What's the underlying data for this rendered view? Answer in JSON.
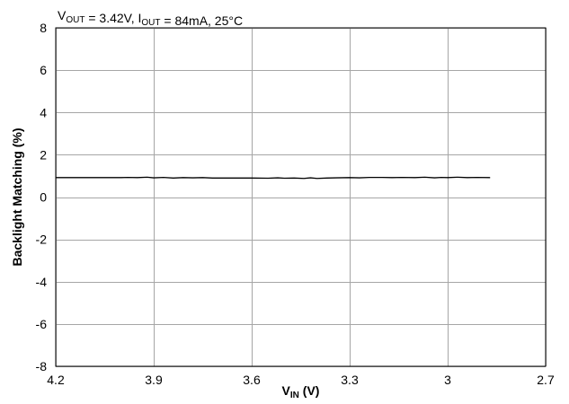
{
  "chart_data": {
    "type": "line",
    "annotation": {
      "parts": [
        {
          "text": "V",
          "sub": "OUT"
        },
        {
          "text": " = 3.42V, I",
          "sub": "OUT"
        },
        {
          "text": " = 84mA, 25°C",
          "sub": ""
        }
      ]
    },
    "xlabel": {
      "text": "V",
      "sub": "IN",
      "suffix": " (V)"
    },
    "ylabel": "Backlight Matching (%)",
    "xlim": [
      4.2,
      2.7
    ],
    "ylim": [
      -8,
      8
    ],
    "x_reversed": true,
    "x_ticks": [
      4.2,
      3.9,
      3.6,
      3.3,
      3.0,
      2.7
    ],
    "x_tick_labels": [
      "4.2",
      "3.9",
      "3.6",
      "3.3",
      "3",
      "2.7"
    ],
    "y_ticks": [
      -8,
      -6,
      -4,
      -2,
      0,
      2,
      4,
      6,
      8
    ],
    "y_tick_labels": [
      "-8",
      "-6",
      "-4",
      "-2",
      "0",
      "2",
      "4",
      "6",
      "8"
    ],
    "grid": true,
    "series": [
      {
        "color": "#000000",
        "x": [
          4.2,
          4.15,
          4.1,
          4.05,
          4.0,
          3.98,
          3.95,
          3.92,
          3.9,
          3.87,
          3.84,
          3.81,
          3.78,
          3.75,
          3.72,
          3.7,
          3.65,
          3.6,
          3.55,
          3.52,
          3.5,
          3.47,
          3.44,
          3.42,
          3.4,
          3.37,
          3.34,
          3.3,
          3.27,
          3.24,
          3.2,
          3.17,
          3.14,
          3.1,
          3.07,
          3.04,
          3.02,
          3.0,
          2.97,
          2.94,
          2.91,
          2.87
        ],
        "y": [
          0.92,
          0.92,
          0.92,
          0.92,
          0.92,
          0.93,
          0.92,
          0.94,
          0.91,
          0.93,
          0.9,
          0.92,
          0.91,
          0.92,
          0.9,
          0.9,
          0.9,
          0.9,
          0.89,
          0.91,
          0.89,
          0.9,
          0.88,
          0.91,
          0.88,
          0.9,
          0.91,
          0.92,
          0.91,
          0.93,
          0.93,
          0.92,
          0.93,
          0.92,
          0.94,
          0.91,
          0.93,
          0.92,
          0.94,
          0.92,
          0.93,
          0.92
        ]
      }
    ]
  }
}
